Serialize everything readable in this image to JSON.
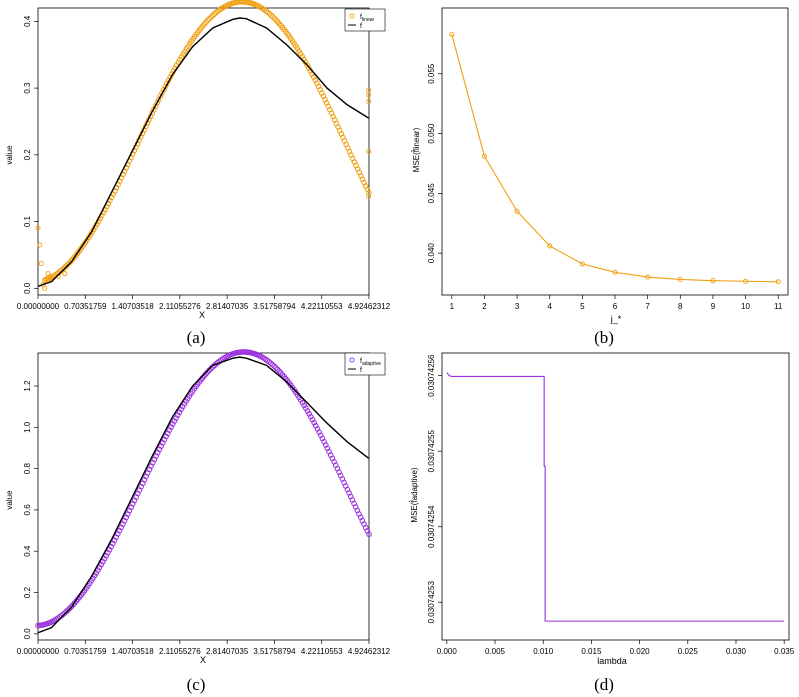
{
  "colors": {
    "orange": "#f0a010",
    "purple": "#9a2ee0",
    "black": "#000000"
  },
  "panels": [
    {
      "caption": "(a)",
      "chart_data": {
        "type": "scatter",
        "xlabel": "X",
        "ylabel": "value",
        "xlim": [
          0,
          4.92462312
        ],
        "ylim": [
          -0.01,
          0.42
        ],
        "xticks": [
          0.0,
          0.70351759,
          1.40703518,
          2.11055276,
          2.81407035,
          3.51758794,
          4.22110553,
          4.92462312
        ],
        "xtick_labels": [
          "0.00000000",
          "0.70351759",
          "1.40703518",
          "2.11055276",
          "2.81407035",
          "3.51758794",
          "4.22110553",
          "4.92462312"
        ],
        "yticks": [
          0.0,
          0.1,
          0.2,
          0.3,
          0.4
        ],
        "ytick_labels": [
          "0.0",
          "0.1",
          "0.2",
          "0.3",
          "0.4"
        ],
        "legend": {
          "position": "top-right",
          "entries": [
            {
              "label": "f̂linear",
              "sub": "linear",
              "marker": "circle",
              "color": "#f0a010"
            },
            {
              "label": "f",
              "marker": "line",
              "color": "#000000"
            }
          ]
        },
        "series": [
          {
            "kind": "points",
            "color": "#f0a010",
            "x": [
              0.0,
              0.025,
              0.05,
              0.075,
              0.1,
              0.125,
              0.15,
              0.175,
              0.2,
              0.3,
              0.4,
              4.92,
              4.92,
              4.92,
              4.92,
              4.92
            ],
            "y": [
              0.09,
              0.065,
              0.037,
              0.005,
              0.0,
              0.014,
              0.022,
              0.017,
              0.013,
              0.018,
              0.022,
              0.297,
              0.29,
              0.28,
              0.205,
              0.138
            ]
          },
          {
            "kind": "points-curve",
            "color": "#f0a010",
            "function": "fhat_linear",
            "x_start": 0.1,
            "x_end": 4.92462312,
            "n": 200
          },
          {
            "kind": "line",
            "color": "#000000",
            "function": "f",
            "x": [
              0.0,
              0.2,
              0.5,
              0.8,
              1.1,
              1.4,
              1.7,
              2.0,
              2.3,
              2.6,
              2.9,
              3.0,
              3.1,
              3.4,
              3.7,
              4.0,
              4.3,
              4.6,
              4.92
            ],
            "y": [
              0.003,
              0.01,
              0.04,
              0.085,
              0.145,
              0.205,
              0.265,
              0.32,
              0.362,
              0.39,
              0.403,
              0.405,
              0.404,
              0.39,
              0.365,
              0.335,
              0.3,
              0.275,
              0.255
            ]
          }
        ]
      }
    },
    {
      "caption": "(b)",
      "chart_data": {
        "type": "line",
        "xlabel": "j_*",
        "ylabel": "MSE(f̂linear)",
        "xlim": [
          0.7,
          11.3
        ],
        "ylim": [
          0.0365,
          0.0605
        ],
        "xticks": [
          1,
          2,
          3,
          4,
          5,
          6,
          7,
          8,
          9,
          10,
          11
        ],
        "xtick_labels": [
          "1",
          "2",
          "3",
          "4",
          "5",
          "6",
          "7",
          "8",
          "9",
          "10",
          "11"
        ],
        "yticks": [
          0.04,
          0.045,
          0.05,
          0.055
        ],
        "ytick_labels": [
          "0.040",
          "0.045",
          "0.050",
          "0.055"
        ],
        "series": [
          {
            "kind": "line-points",
            "color": "#f0a010",
            "x": [
              1,
              2,
              3,
              4,
              5,
              6,
              7,
              8,
              9,
              10,
              11
            ],
            "y": [
              0.0583,
              0.0481,
              0.0435,
              0.0406,
              0.0391,
              0.0384,
              0.038,
              0.0378,
              0.0377,
              0.03765,
              0.0376
            ]
          }
        ]
      }
    },
    {
      "caption": "(c)",
      "chart_data": {
        "type": "scatter",
        "xlabel": "X",
        "ylabel": "value",
        "xlim": [
          0,
          4.92462312
        ],
        "ylim": [
          -0.03,
          1.36
        ],
        "xticks": [
          0.0,
          0.70351759,
          1.40703518,
          2.11055276,
          2.81407035,
          3.51758794,
          4.22110553,
          4.92462312
        ],
        "xtick_labels": [
          "0.00000000",
          "0.70351759",
          "1.40703518",
          "2.11055276",
          "2.81407035",
          "3.51758794",
          "4.22110553",
          "4.92462312"
        ],
        "yticks": [
          0.0,
          0.2,
          0.4,
          0.6,
          0.8,
          1.0,
          1.2
        ],
        "ytick_labels": [
          "0.0",
          "0.2",
          "0.4",
          "0.6",
          "0.8",
          "1.0",
          "1.2"
        ],
        "legend": {
          "position": "top-right",
          "entries": [
            {
              "label": "f̂adaptive",
              "sub": "adaptive",
              "marker": "circle",
              "color": "#9a2ee0"
            },
            {
              "label": "f",
              "marker": "line",
              "color": "#000000"
            }
          ]
        },
        "series": [
          {
            "kind": "points-curve",
            "color": "#9a2ee0",
            "function": "fhat_adaptive",
            "x_start": 0.0,
            "x_end": 4.92462312,
            "n": 200
          },
          {
            "kind": "line",
            "color": "#000000",
            "function": "f",
            "x": [
              0.0,
              0.2,
              0.5,
              0.8,
              1.1,
              1.4,
              1.7,
              2.0,
              2.3,
              2.6,
              2.9,
              3.0,
              3.1,
              3.4,
              3.7,
              4.0,
              4.3,
              4.6,
              4.92
            ],
            "y": [
              0.005,
              0.03,
              0.13,
              0.28,
              0.46,
              0.66,
              0.86,
              1.05,
              1.2,
              1.3,
              1.335,
              1.34,
              1.335,
              1.3,
              1.22,
              1.12,
              1.02,
              0.93,
              0.85
            ]
          }
        ]
      }
    },
    {
      "caption": "(d)",
      "chart_data": {
        "type": "line",
        "xlabel": "lambda",
        "ylabel": "MSE(f̂adaptive)",
        "xlim": [
          -0.0005,
          0.0355
        ],
        "ylim": [
          0.030742525,
          0.030742563
        ],
        "xticks": [
          0.0,
          0.005,
          0.01,
          0.015,
          0.02,
          0.025,
          0.03,
          0.035
        ],
        "xtick_labels": [
          "0.000",
          "0.005",
          "0.010",
          "0.015",
          "0.020",
          "0.025",
          "0.030",
          "0.035"
        ],
        "yticks": [
          0.03074253,
          0.03074254,
          0.03074255,
          0.03074256
        ],
        "ytick_labels": [
          "0.03074253",
          "0.03074254",
          "0.03074255",
          "0.03074256"
        ],
        "series": [
          {
            "kind": "line",
            "color": "#9a2ee0",
            "x": [
              0.0,
              0.00025,
              0.0005,
              0.0101,
              0.0101,
              0.0102,
              0.0102,
              0.035
            ],
            "y": [
              0.0307425604,
              0.03074256,
              0.0307425599,
              0.0307425599,
              0.030742548,
              0.030742548,
              0.0307425275,
              0.0307425275
            ]
          }
        ]
      }
    }
  ]
}
